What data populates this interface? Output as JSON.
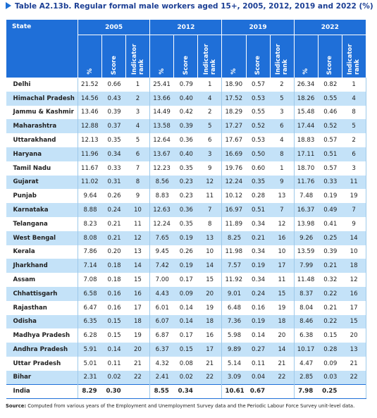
{
  "title": "Table A2.13b. Regular formal male workers aged 15+, 2005, 2012, 2019 and 2022 (%)",
  "table": {
    "state_header": "State",
    "years": [
      "2005",
      "2012",
      "2019",
      "2022"
    ],
    "subheaders": [
      "%",
      "Score",
      "Indicator rank"
    ],
    "rows": [
      [
        "Delhi",
        "21.52",
        "0.66",
        "1",
        "25.41",
        "0.79",
        "1",
        "18.90",
        "0.57",
        "2",
        "26.34",
        "0.82",
        "1"
      ],
      [
        "Himachal Pradesh",
        "14.56",
        "0.43",
        "2",
        "13.66",
        "0.40",
        "4",
        "17.52",
        "0.53",
        "5",
        "18.26",
        "0.55",
        "4"
      ],
      [
        "Jammu & Kashmir",
        "13.46",
        "0.39",
        "3",
        "14.49",
        "0.42",
        "2",
        "18.29",
        "0.55",
        "3",
        "15.48",
        "0.46",
        "8"
      ],
      [
        "Maharashtra",
        "12.88",
        "0.37",
        "4",
        "13.58",
        "0.39",
        "5",
        "17.27",
        "0.52",
        "6",
        "17.44",
        "0.52",
        "5"
      ],
      [
        "Uttarakhand",
        "12.13",
        "0.35",
        "5",
        "12.64",
        "0.36",
        "6",
        "17.67",
        "0.53",
        "4",
        "18.83",
        "0.57",
        "2"
      ],
      [
        "Haryana",
        "11.96",
        "0.34",
        "6",
        "13.67",
        "0.40",
        "3",
        "16.69",
        "0.50",
        "8",
        "17.11",
        "0.51",
        "6"
      ],
      [
        "Tamil Nadu",
        "11.67",
        "0.33",
        "7",
        "12.23",
        "0.35",
        "9",
        "19.76",
        "0.60",
        "1",
        "18.70",
        "0.57",
        "3"
      ],
      [
        "Gujarat",
        "11.02",
        "0.31",
        "8",
        "8.56",
        "0.23",
        "12",
        "12.24",
        "0.35",
        "9",
        "11.76",
        "0.33",
        "11"
      ],
      [
        "Punjab",
        "9.64",
        "0.26",
        "9",
        "8.83",
        "0.23",
        "11",
        "10.12",
        "0.28",
        "13",
        "7.48",
        "0.19",
        "19"
      ],
      [
        "Karnataka",
        "8.88",
        "0.24",
        "10",
        "12.63",
        "0.36",
        "7",
        "16.97",
        "0.51",
        "7",
        "16.37",
        "0.49",
        "7"
      ],
      [
        "Telangana",
        "8.23",
        "0.21",
        "11",
        "12.24",
        "0.35",
        "8",
        "11.89",
        "0.34",
        "12",
        "13.98",
        "0.41",
        "9"
      ],
      [
        "West Bengal",
        "8.08",
        "0.21",
        "12",
        "7.65",
        "0.19",
        "13",
        "8.25",
        "0.21",
        "16",
        "9.26",
        "0.25",
        "14"
      ],
      [
        "Kerala",
        "7.86",
        "0.20",
        "13",
        "9.45",
        "0.26",
        "10",
        "11.98",
        "0.34",
        "10",
        "13.59",
        "0.39",
        "10"
      ],
      [
        "Jharkhand",
        "7.14",
        "0.18",
        "14",
        "7.42",
        "0.19",
        "14",
        "7.57",
        "0.19",
        "17",
        "7.99",
        "0.21",
        "18"
      ],
      [
        "Assam",
        "7.08",
        "0.18",
        "15",
        "7.00",
        "0.17",
        "15",
        "11.92",
        "0.34",
        "11",
        "11.48",
        "0.32",
        "12"
      ],
      [
        "Chhattisgarh",
        "6.58",
        "0.16",
        "16",
        "4.43",
        "0.09",
        "20",
        "9.01",
        "0.24",
        "15",
        "8.37",
        "0.22",
        "16"
      ],
      [
        "Rajasthan",
        "6.47",
        "0.16",
        "17",
        "6.01",
        "0.14",
        "19",
        "6.48",
        "0.16",
        "19",
        "8.04",
        "0.21",
        "17"
      ],
      [
        "Odisha",
        "6.35",
        "0.15",
        "18",
        "6.07",
        "0.14",
        "18",
        "7.36",
        "0.19",
        "18",
        "8.46",
        "0.22",
        "15"
      ],
      [
        "Madhya Pradesh",
        "6.28",
        "0.15",
        "19",
        "6.87",
        "0.17",
        "16",
        "5.98",
        "0.14",
        "20",
        "6.38",
        "0.15",
        "20"
      ],
      [
        "Andhra Pradesh",
        "5.91",
        "0.14",
        "20",
        "6.37",
        "0.15",
        "17",
        "9.89",
        "0.27",
        "14",
        "10.17",
        "0.28",
        "13"
      ],
      [
        "Uttar Pradesh",
        "5.01",
        "0.11",
        "21",
        "4.32",
        "0.08",
        "21",
        "5.14",
        "0.11",
        "21",
        "4.47",
        "0.09",
        "21"
      ],
      [
        "Bihar",
        "2.31",
        "0.02",
        "22",
        "2.41",
        "0.02",
        "22",
        "3.09",
        "0.04",
        "22",
        "2.85",
        "0.03",
        "22"
      ]
    ],
    "total_row": [
      "India",
      "8.29",
      "0.30",
      "8.55",
      "0.34",
      "10.61",
      "0.67",
      "7.98",
      "0.25"
    ]
  },
  "source": {
    "label": "Source:",
    "text": "Computed from various years of the Employment and Unemployment Survey data and the Periodic Labour Force Survey unit-level data."
  }
}
